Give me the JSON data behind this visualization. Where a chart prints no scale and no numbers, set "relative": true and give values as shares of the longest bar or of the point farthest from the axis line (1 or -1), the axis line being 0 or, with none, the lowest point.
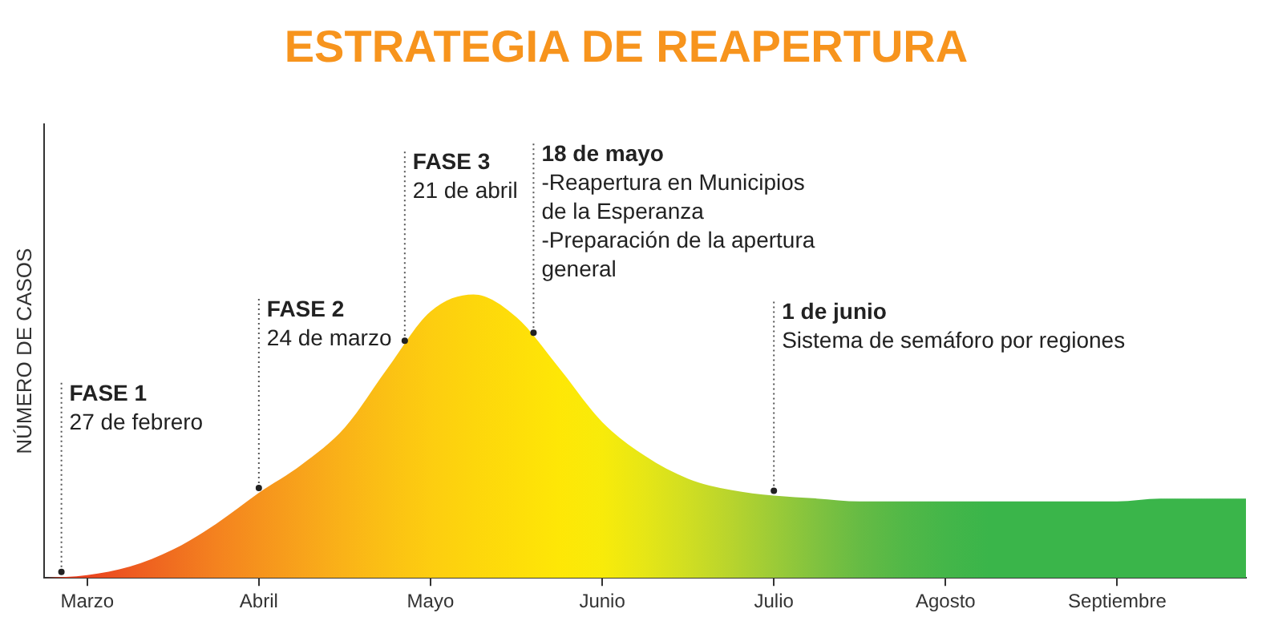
{
  "chart_data": {
    "type": "area",
    "title": "ESTRATEGIA DE REAPERTURA",
    "ylabel": "NÚMERO DE CASOS",
    "relative": true,
    "grid": false,
    "categories": [
      null,
      "Marzo",
      null,
      null,
      null,
      "Abril",
      null,
      null,
      null,
      "Mayo",
      null,
      null,
      null,
      "Junio",
      null,
      null,
      null,
      "Julio",
      null,
      null,
      null,
      "Agosto",
      null,
      null,
      null,
      "Septiembre",
      null,
      null,
      null
    ],
    "values": [
      0,
      0.01,
      0.04,
      0.1,
      0.19,
      0.3,
      0.4,
      0.53,
      0.74,
      0.94,
      1,
      0.92,
      0.74,
      0.55,
      0.43,
      0.35,
      0.31,
      0.29,
      0.28,
      0.27,
      0.27,
      0.27,
      0.27,
      0.27,
      0.27,
      0.27,
      0.28,
      0.28,
      0.28
    ],
    "colors": [
      "#e8361e",
      "#ea4420",
      "#ee5a20",
      "#f06e20",
      "#f4821f",
      "#f6931d",
      "#f8a31b",
      "#fab318",
      "#fbc114",
      "#fdcd10",
      "#fdd60c",
      "#fede09",
      "#fee706",
      "#f8eb0a",
      "#e6e616",
      "#d0de22",
      "#b8d42d",
      "#9ccb37",
      "#80c23f",
      "#66bb44",
      "#52b847",
      "#44b649",
      "#3ab54a",
      "#3ab54a",
      "#3ab54a",
      "#3ab54a",
      "#3ab54a",
      "#3ab54a",
      "#3ab54a"
    ],
    "annotations": [
      "FASE 1\n27 de febrero",
      "FASE 2\n24 de marzo",
      "FASE 3\n21 de abril",
      "18 de mayo\n-Reapertura en Municipios\nde la Esperanza\n-Preparación de la apertura\ngeneral",
      "1 de junio\nSistema de semáforo por regiones"
    ]
  }
}
